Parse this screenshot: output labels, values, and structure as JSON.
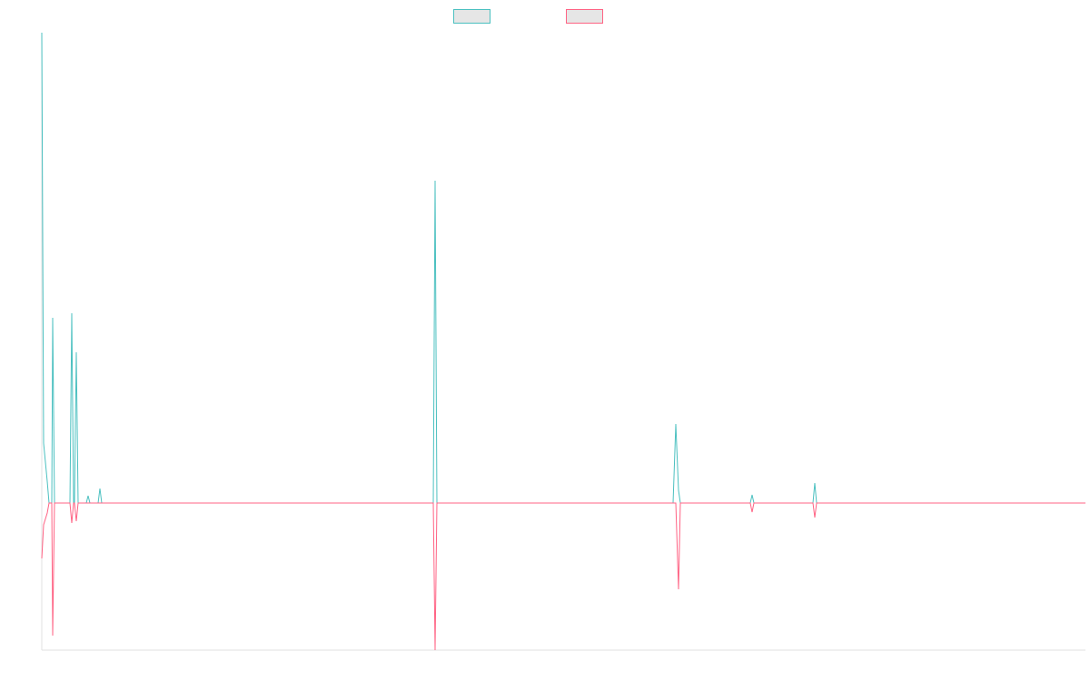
{
  "chart_data": {
    "type": "line",
    "x": [
      0,
      2,
      6,
      8,
      11,
      12,
      14,
      31,
      33,
      35,
      36,
      38,
      40,
      49,
      51,
      53,
      62,
      64,
      66,
      431,
      433,
      435,
      695,
      698,
      701,
      703,
      780,
      782,
      784,
      849,
      851,
      853,
      1149
    ],
    "series": [
      {
        "color": "#4bc0c0",
        "values": [
          518,
          66,
          24,
          0,
          0,
          204,
          0,
          0,
          209,
          0,
          0,
          166,
          0,
          0,
          8,
          0,
          0,
          16,
          0,
          0,
          355,
          0,
          0,
          87,
          14,
          0,
          0,
          9,
          0,
          0,
          22,
          0,
          0
        ]
      },
      {
        "color": "#ff6384",
        "values": [
          -61,
          -24,
          -11,
          0,
          0,
          -146,
          0,
          0,
          -22,
          0,
          0,
          -20,
          0,
          0,
          0,
          0,
          0,
          0,
          0,
          0,
          -162,
          0,
          0,
          0,
          -95,
          0,
          0,
          -10,
          0,
          0,
          -16,
          0,
          0
        ]
      }
    ],
    "xlim": [
      0,
      1149
    ],
    "ylim": [
      -162,
      518
    ],
    "legend": "top"
  }
}
